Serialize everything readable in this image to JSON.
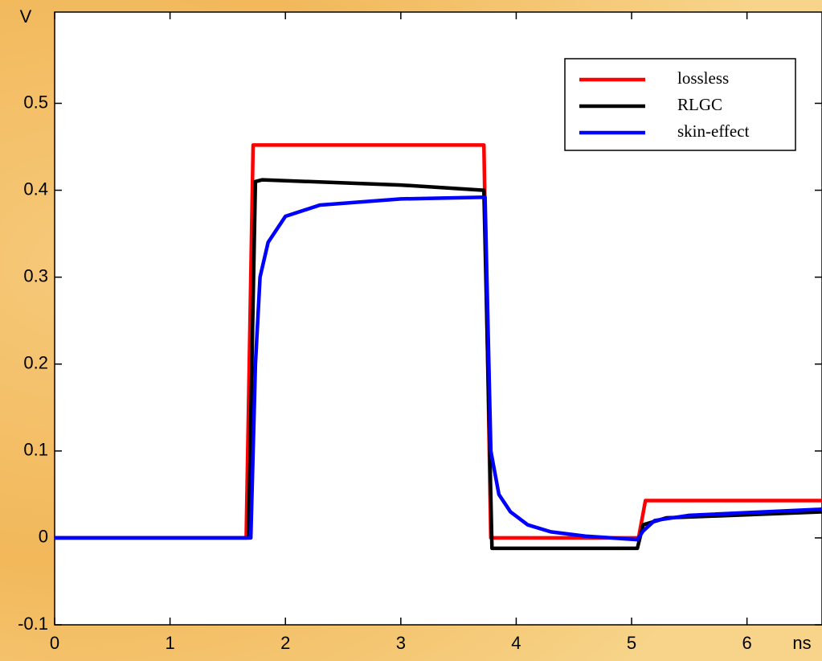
{
  "chart_data": {
    "type": "line",
    "xlabel": "ns",
    "ylabel": "V",
    "xlim": [
      0,
      6.65
    ],
    "ylim": [
      -0.1,
      0.605
    ],
    "xticks": [
      0,
      1,
      2,
      3,
      4,
      5,
      6
    ],
    "yticks": [
      -0.1,
      0,
      0.1,
      0.2,
      0.3,
      0.4,
      0.5
    ],
    "legend": "upper right",
    "series": [
      {
        "name": "lossless",
        "color": "#ff0000",
        "x": [
          0,
          1.66,
          1.72,
          3.72,
          3.78,
          5.06,
          5.12,
          6.65
        ],
        "values": [
          0,
          0,
          0.452,
          0.452,
          0,
          0,
          0.043,
          0.043
        ]
      },
      {
        "name": "RLGC",
        "color": "#000000",
        "x": [
          0,
          1.68,
          1.74,
          1.8,
          3.0,
          3.72,
          3.79,
          5.05,
          5.1,
          5.3,
          6.65
        ],
        "values": [
          0,
          0,
          0.41,
          0.412,
          0.406,
          0.4,
          -0.012,
          -0.012,
          0.015,
          0.023,
          0.03
        ]
      },
      {
        "name": "skin-effect",
        "color": "#0000ff",
        "x": [
          0,
          1.7,
          1.74,
          1.78,
          1.85,
          2.0,
          2.3,
          3.0,
          3.73,
          3.78,
          3.85,
          3.95,
          4.1,
          4.3,
          4.6,
          5.05,
          5.1,
          5.2,
          5.5,
          6.65
        ],
        "values": [
          0,
          0,
          0.2,
          0.3,
          0.34,
          0.37,
          0.383,
          0.39,
          0.392,
          0.1,
          0.05,
          0.03,
          0.015,
          0.007,
          0.002,
          -0.002,
          0.008,
          0.02,
          0.026,
          0.033
        ]
      }
    ]
  }
}
